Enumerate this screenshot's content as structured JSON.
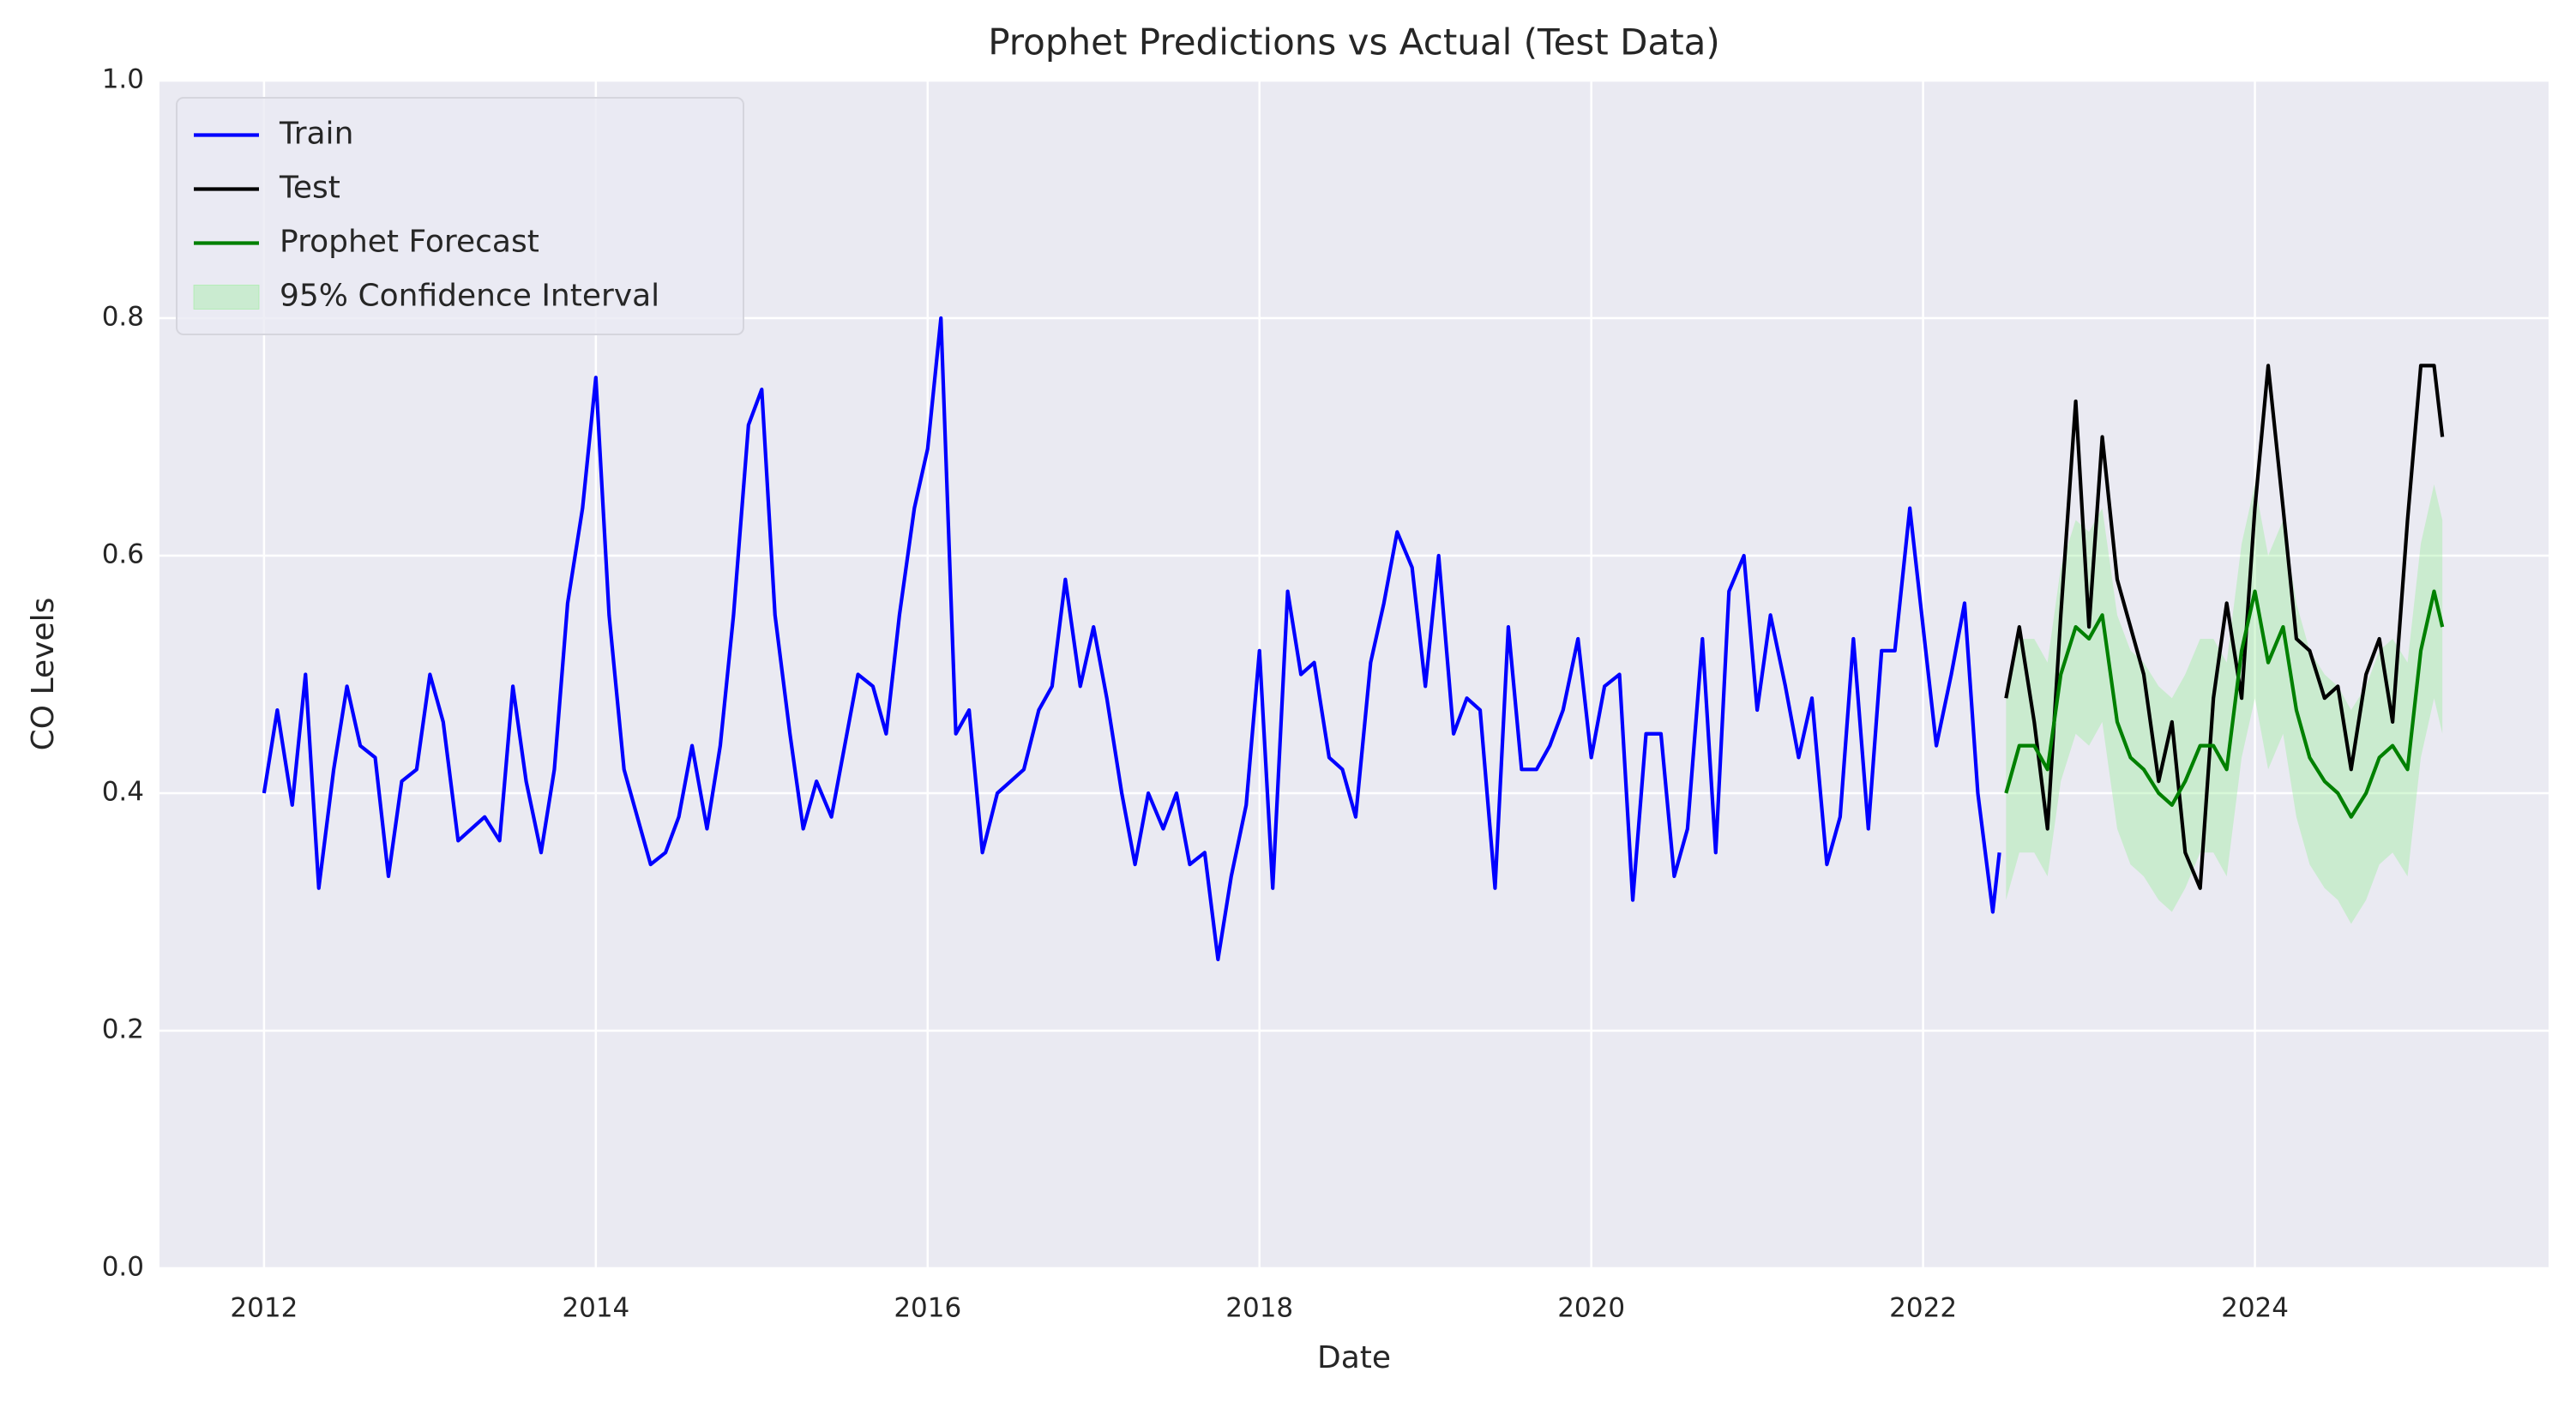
{
  "chart_data": {
    "type": "line",
    "title": "Prophet Predictions vs Actual (Test Data)",
    "xlabel": "Date",
    "ylabel": "CO Levels",
    "xlim": [
      2011.37,
      2025.77
    ],
    "ylim": [
      0,
      1
    ],
    "xticks": [
      2012,
      2014,
      2016,
      2018,
      2020,
      2022,
      2024
    ],
    "yticks": [
      {
        "value": 0,
        "label": "0.0"
      },
      0.2,
      0.4,
      0.6,
      0.8,
      {
        "value": 1,
        "label": "1.0"
      }
    ],
    "grid": true,
    "legend": "upper left",
    "series": [
      {
        "name": "Train",
        "color": "#0000ff",
        "x": [
          2012.0,
          2012.08,
          2012.17,
          2012.25,
          2012.33,
          2012.42,
          2012.5,
          2012.58,
          2012.67,
          2012.75,
          2012.83,
          2012.92,
          2013.0,
          2013.08,
          2013.17,
          2013.25,
          2013.33,
          2013.42,
          2013.5,
          2013.58,
          2013.67,
          2013.75,
          2013.83,
          2013.92,
          2014.0,
          2014.08,
          2014.17,
          2014.25,
          2014.33,
          2014.42,
          2014.5,
          2014.58,
          2014.67,
          2014.75,
          2014.83,
          2014.92,
          2015.0,
          2015.08,
          2015.17,
          2015.25,
          2015.33,
          2015.42,
          2015.5,
          2015.58,
          2015.67,
          2015.75,
          2015.83,
          2015.92,
          2016.0,
          2016.08,
          2016.17,
          2016.25,
          2016.33,
          2016.42,
          2016.5,
          2016.58,
          2016.67,
          2016.75,
          2016.83,
          2016.92,
          2017.0,
          2017.08,
          2017.17,
          2017.25,
          2017.33,
          2017.42,
          2017.5,
          2017.58,
          2017.67,
          2017.75,
          2017.83,
          2017.92,
          2018.0,
          2018.08,
          2018.17,
          2018.25,
          2018.33,
          2018.42,
          2018.5,
          2018.58,
          2018.67,
          2018.75,
          2018.83,
          2018.92,
          2019.0,
          2019.08,
          2019.17,
          2019.25,
          2019.33,
          2019.42,
          2019.5,
          2019.58,
          2019.67,
          2019.75,
          2019.83,
          2019.92,
          2020.0,
          2020.08,
          2020.17,
          2020.25,
          2020.33,
          2020.42,
          2020.5,
          2020.58,
          2020.67,
          2020.75,
          2020.83,
          2020.92,
          2021.0,
          2021.08,
          2021.17,
          2021.25,
          2021.33,
          2021.42,
          2021.5,
          2021.58,
          2021.67,
          2021.75,
          2021.83,
          2021.92,
          2022.0,
          2022.08,
          2022.17,
          2022.25,
          2022.33,
          2022.42,
          2022.46
        ],
        "values": [
          0.4,
          0.47,
          0.39,
          0.5,
          0.32,
          0.42,
          0.49,
          0.44,
          0.43,
          0.33,
          0.41,
          0.42,
          0.5,
          0.46,
          0.36,
          0.37,
          0.38,
          0.36,
          0.49,
          0.41,
          0.35,
          0.42,
          0.56,
          0.64,
          0.75,
          0.55,
          0.42,
          0.38,
          0.34,
          0.35,
          0.38,
          0.44,
          0.37,
          0.44,
          0.55,
          0.71,
          0.74,
          0.55,
          0.45,
          0.37,
          0.41,
          0.38,
          0.44,
          0.5,
          0.49,
          0.45,
          0.55,
          0.64,
          0.69,
          0.8,
          0.45,
          0.47,
          0.35,
          0.4,
          0.41,
          0.42,
          0.47,
          0.49,
          0.58,
          0.49,
          0.54,
          0.48,
          0.4,
          0.34,
          0.4,
          0.37,
          0.4,
          0.34,
          0.35,
          0.26,
          0.33,
          0.39,
          0.52,
          0.32,
          0.57,
          0.5,
          0.51,
          0.43,
          0.42,
          0.38,
          0.51,
          0.56,
          0.62,
          0.59,
          0.49,
          0.6,
          0.45,
          0.48,
          0.47,
          0.32,
          0.54,
          0.42,
          0.42,
          0.44,
          0.47,
          0.53,
          0.43,
          0.49,
          0.5,
          0.31,
          0.45,
          0.45,
          0.33,
          0.37,
          0.53,
          0.35,
          0.57,
          0.6,
          0.47,
          0.55,
          0.49,
          0.43,
          0.48,
          0.34,
          0.38,
          0.53,
          0.37,
          0.52,
          0.52,
          0.64,
          0.54,
          0.44,
          0.5,
          0.56,
          0.4,
          0.3,
          0.35
        ]
      },
      {
        "name": "Test",
        "color": "#000000",
        "x": [
          2022.5,
          2022.58,
          2022.67,
          2022.75,
          2022.83,
          2022.92,
          2023.0,
          2023.08,
          2023.17,
          2023.25,
          2023.33,
          2023.42,
          2023.5,
          2023.58,
          2023.67,
          2023.75,
          2023.83,
          2023.92,
          2024.0,
          2024.08,
          2024.17,
          2024.25,
          2024.33,
          2024.42,
          2024.5,
          2024.58,
          2024.67,
          2024.75,
          2024.83,
          2024.92,
          2025.0,
          2025.08,
          2025.13
        ],
        "values": [
          0.48,
          0.54,
          0.46,
          0.37,
          0.55,
          0.73,
          0.54,
          0.7,
          0.58,
          0.54,
          0.5,
          0.41,
          0.46,
          0.35,
          0.32,
          0.48,
          0.56,
          0.48,
          0.64,
          0.76,
          0.64,
          0.53,
          0.52,
          0.48,
          0.49,
          0.42,
          0.5,
          0.53,
          0.46,
          0.63,
          0.76,
          0.76,
          0.7
        ]
      },
      {
        "name": "Prophet Forecast",
        "color": "#008000",
        "x": [
          2022.5,
          2022.58,
          2022.67,
          2022.75,
          2022.83,
          2022.92,
          2023.0,
          2023.08,
          2023.17,
          2023.25,
          2023.33,
          2023.42,
          2023.5,
          2023.58,
          2023.67,
          2023.75,
          2023.83,
          2023.92,
          2024.0,
          2024.08,
          2024.17,
          2024.25,
          2024.33,
          2024.42,
          2024.5,
          2024.58,
          2024.67,
          2024.75,
          2024.83,
          2024.92,
          2025.0,
          2025.08,
          2025.13
        ],
        "values": [
          0.4,
          0.44,
          0.44,
          0.42,
          0.5,
          0.54,
          0.53,
          0.55,
          0.46,
          0.43,
          0.42,
          0.4,
          0.39,
          0.41,
          0.44,
          0.44,
          0.42,
          0.52,
          0.57,
          0.51,
          0.54,
          0.47,
          0.43,
          0.41,
          0.4,
          0.38,
          0.4,
          0.43,
          0.44,
          0.42,
          0.52,
          0.57,
          0.54
        ]
      }
    ],
    "band": {
      "name": "95% Confidence Interval",
      "color": "#90ee90",
      "x": [
        2022.5,
        2022.58,
        2022.67,
        2022.75,
        2022.83,
        2022.92,
        2023.0,
        2023.08,
        2023.17,
        2023.25,
        2023.33,
        2023.42,
        2023.5,
        2023.58,
        2023.67,
        2023.75,
        2023.83,
        2023.92,
        2024.0,
        2024.08,
        2024.17,
        2024.25,
        2024.33,
        2024.42,
        2024.5,
        2024.58,
        2024.67,
        2024.75,
        2024.83,
        2024.92,
        2025.0,
        2025.08,
        2025.13
      ],
      "lower": [
        0.31,
        0.35,
        0.35,
        0.33,
        0.41,
        0.45,
        0.44,
        0.46,
        0.37,
        0.34,
        0.33,
        0.31,
        0.3,
        0.32,
        0.35,
        0.35,
        0.33,
        0.43,
        0.48,
        0.42,
        0.45,
        0.38,
        0.34,
        0.32,
        0.31,
        0.29,
        0.31,
        0.34,
        0.35,
        0.33,
        0.43,
        0.48,
        0.45
      ],
      "upper": [
        0.49,
        0.53,
        0.53,
        0.51,
        0.59,
        0.63,
        0.62,
        0.64,
        0.55,
        0.52,
        0.51,
        0.49,
        0.48,
        0.5,
        0.53,
        0.53,
        0.51,
        0.61,
        0.66,
        0.6,
        0.63,
        0.56,
        0.52,
        0.5,
        0.49,
        0.47,
        0.49,
        0.52,
        0.53,
        0.51,
        0.61,
        0.66,
        0.63
      ]
    }
  }
}
